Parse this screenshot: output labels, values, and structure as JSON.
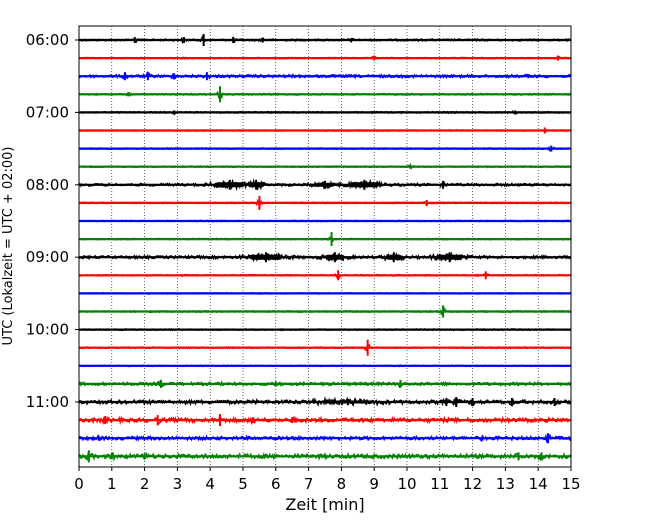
{
  "chart_data": {
    "type": "helicorder",
    "xlabel": "Zeit  [min]",
    "ylabel": "UTC (Lokalzeit = UTC + 02:00)",
    "xlim": [
      0,
      15
    ],
    "x_ticks": [
      0,
      1,
      2,
      3,
      4,
      5,
      6,
      7,
      8,
      9,
      10,
      11,
      12,
      13,
      14,
      15
    ],
    "x_grid": "dotted vertical lines at each minute",
    "row_interval_minutes": 15,
    "trace_color_cycle": [
      "#000000",
      "#ff0000",
      "#0000ff",
      "#008000"
    ],
    "y_ticks": [
      {
        "label": "06:00",
        "row": 0
      },
      {
        "label": "07:00",
        "row": 4
      },
      {
        "label": "08:00",
        "row": 8
      },
      {
        "label": "09:00",
        "row": 12
      },
      {
        "label": "10:00",
        "row": 16
      },
      {
        "label": "11:00",
        "row": 20
      }
    ],
    "rows": [
      {
        "start": "06:00",
        "color": "#000000",
        "base": 0.9,
        "events": [
          {
            "t": 1.7,
            "amp": 3
          },
          {
            "t": 3.2,
            "amp": 3
          },
          {
            "t": 3.8,
            "amp": 6
          },
          {
            "t": 4.7,
            "amp": 3
          },
          {
            "t": 5.6,
            "amp": 2.5
          },
          {
            "t": 8.3,
            "amp": 2
          }
        ]
      },
      {
        "start": "06:15",
        "color": "#ff0000",
        "base": 0.6,
        "events": [
          {
            "t": 9.0,
            "amp": 2.5
          },
          {
            "t": 14.6,
            "amp": 2.5
          }
        ]
      },
      {
        "start": "06:30",
        "color": "#0000ff",
        "base": 1.3,
        "events": [
          {
            "t": 1.4,
            "amp": 4
          },
          {
            "t": 2.1,
            "amp": 4
          },
          {
            "t": 2.9,
            "amp": 3
          },
          {
            "t": 3.9,
            "amp": 4
          },
          {
            "t": 13.7,
            "amp": 2
          }
        ]
      },
      {
        "start": "06:45",
        "color": "#008000",
        "base": 0.7,
        "events": [
          {
            "t": 1.5,
            "amp": 2
          },
          {
            "t": 4.3,
            "amp": 8
          }
        ]
      },
      {
        "start": "07:00",
        "color": "#000000",
        "base": 0.7,
        "events": [
          {
            "t": 2.9,
            "amp": 2
          },
          {
            "t": 13.3,
            "amp": 2
          }
        ]
      },
      {
        "start": "07:15",
        "color": "#ff0000",
        "base": 0.5,
        "events": [
          {
            "t": 14.2,
            "amp": 3
          }
        ]
      },
      {
        "start": "07:30",
        "color": "#0000ff",
        "base": 0.6,
        "events": [
          {
            "t": 14.4,
            "amp": 3
          }
        ]
      },
      {
        "start": "07:45",
        "color": "#008000",
        "base": 0.6,
        "events": [
          {
            "t": 10.1,
            "amp": 2
          }
        ]
      },
      {
        "start": "08:00",
        "color": "#000000",
        "base": 1.2,
        "events": [
          {
            "t": 4.6,
            "amp": 5,
            "width": 0.9
          },
          {
            "t": 5.4,
            "amp": 5,
            "width": 0.5
          },
          {
            "t": 7.5,
            "amp": 4,
            "width": 0.6
          },
          {
            "t": 8.7,
            "amp": 5,
            "width": 0.9
          },
          {
            "t": 11.1,
            "amp": 4
          }
        ]
      },
      {
        "start": "08:15",
        "color": "#ff0000",
        "base": 0.6,
        "events": [
          {
            "t": 5.5,
            "amp": 7
          },
          {
            "t": 10.6,
            "amp": 3
          }
        ]
      },
      {
        "start": "08:30",
        "color": "#0000ff",
        "base": 0.5,
        "events": []
      },
      {
        "start": "08:45",
        "color": "#008000",
        "base": 0.6,
        "events": [
          {
            "t": 7.7,
            "amp": 7
          }
        ]
      },
      {
        "start": "09:00",
        "color": "#000000",
        "base": 1.3,
        "events": [
          {
            "t": 5.7,
            "amp": 5,
            "width": 1.0
          },
          {
            "t": 7.8,
            "amp": 5,
            "width": 0.6
          },
          {
            "t": 9.6,
            "amp": 5,
            "width": 0.5
          },
          {
            "t": 11.3,
            "amp": 5,
            "width": 0.8
          }
        ]
      },
      {
        "start": "09:15",
        "color": "#ff0000",
        "base": 0.6,
        "events": [
          {
            "t": 7.9,
            "amp": 5
          },
          {
            "t": 12.4,
            "amp": 4
          }
        ]
      },
      {
        "start": "09:30",
        "color": "#0000ff",
        "base": 0.5,
        "events": []
      },
      {
        "start": "09:45",
        "color": "#008000",
        "base": 0.7,
        "events": [
          {
            "t": 11.1,
            "amp": 6
          }
        ]
      },
      {
        "start": "10:00",
        "color": "#000000",
        "base": 0.6,
        "events": []
      },
      {
        "start": "10:15",
        "color": "#ff0000",
        "base": 0.6,
        "events": [
          {
            "t": 8.8,
            "amp": 8
          }
        ]
      },
      {
        "start": "10:30",
        "color": "#0000ff",
        "base": 0.5,
        "events": []
      },
      {
        "start": "10:45",
        "color": "#008000",
        "base": 1.4,
        "events": [
          {
            "t": 2.5,
            "amp": 4
          },
          {
            "t": 6.0,
            "amp": 2.5
          },
          {
            "t": 9.8,
            "amp": 4
          }
        ]
      },
      {
        "start": "11:00",
        "color": "#000000",
        "base": 1.8,
        "events": [
          {
            "t": 8.2,
            "amp": 3,
            "width": 1.6
          },
          {
            "t": 11.2,
            "amp": 4
          },
          {
            "t": 11.5,
            "amp": 5
          },
          {
            "t": 12.0,
            "amp": 4
          },
          {
            "t": 13.2,
            "amp": 4
          },
          {
            "t": 14.5,
            "amp": 4
          }
        ]
      },
      {
        "start": "11:15",
        "color": "#ff0000",
        "base": 1.9,
        "events": [
          {
            "t": 0.8,
            "amp": 4
          },
          {
            "t": 2.4,
            "amp": 5
          },
          {
            "t": 4.3,
            "amp": 6
          },
          {
            "t": 5.3,
            "amp": 3
          },
          {
            "t": 6.5,
            "amp": 3
          }
        ]
      },
      {
        "start": "11:30",
        "color": "#0000ff",
        "base": 1.6,
        "events": [
          {
            "t": 0.6,
            "amp": 2.5
          },
          {
            "t": 12.3,
            "amp": 2.5
          },
          {
            "t": 14.3,
            "amp": 5
          }
        ]
      },
      {
        "start": "11:45",
        "color": "#008000",
        "base": 2.0,
        "events": [
          {
            "t": 0.3,
            "amp": 6
          },
          {
            "t": 1.0,
            "amp": 3
          },
          {
            "t": 2.0,
            "amp": 3
          },
          {
            "t": 13.4,
            "amp": 4
          },
          {
            "t": 14.1,
            "amp": 4
          }
        ]
      }
    ]
  }
}
